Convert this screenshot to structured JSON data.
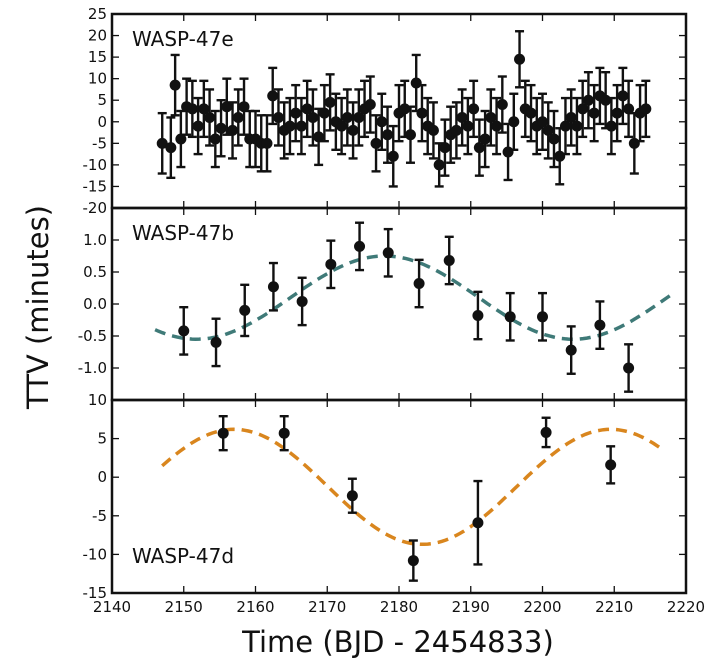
{
  "chart_data": {
    "type": "scatter",
    "xlabel": "Time (BJD - 2454833)",
    "ylabel": "TTV (minutes)",
    "xlim": [
      2140,
      2220
    ],
    "xticks": [
      "2140",
      "2150",
      "2160",
      "2170",
      "2180",
      "2190",
      "2200",
      "2210",
      "2220"
    ],
    "colors": {
      "points": "#111111",
      "model_b": "#3f7a78",
      "model_d": "#d9861e"
    },
    "panels": [
      {
        "name": "WASP-47e",
        "ylim": [
          -20,
          25
        ],
        "yticks": [
          "-20",
          "-15",
          "-10",
          "-5",
          "0",
          "5",
          "10",
          "15",
          "20",
          "25"
        ],
        "points": [
          {
            "x": 2147.0,
            "y": -5.0,
            "err": 7.0
          },
          {
            "x": 2148.2,
            "y": -6.0,
            "err": 7.0
          },
          {
            "x": 2148.8,
            "y": 8.5,
            "err": 7.0
          },
          {
            "x": 2149.6,
            "y": -4.0,
            "err": 6.5
          },
          {
            "x": 2150.4,
            "y": 3.5,
            "err": 6.5
          },
          {
            "x": 2151.2,
            "y": 3.0,
            "err": 6.5
          },
          {
            "x": 2152.0,
            "y": -1.0,
            "err": 6.5
          },
          {
            "x": 2152.8,
            "y": 3.0,
            "err": 6.5
          },
          {
            "x": 2153.6,
            "y": 1.0,
            "err": 6.5
          },
          {
            "x": 2154.4,
            "y": -4.0,
            "err": 6.5
          },
          {
            "x": 2155.2,
            "y": -1.5,
            "err": 6.5
          },
          {
            "x": 2156.0,
            "y": 3.5,
            "err": 6.5
          },
          {
            "x": 2156.8,
            "y": -2.0,
            "err": 6.5
          },
          {
            "x": 2157.6,
            "y": 1.0,
            "err": 6.5
          },
          {
            "x": 2158.4,
            "y": 3.5,
            "err": 6.5
          },
          {
            "x": 2159.2,
            "y": -4.0,
            "err": 6.5
          },
          {
            "x": 2160.0,
            "y": -4.0,
            "err": 6.5
          },
          {
            "x": 2160.8,
            "y": -5.0,
            "err": 6.5
          },
          {
            "x": 2161.6,
            "y": -5.0,
            "err": 6.5
          },
          {
            "x": 2162.4,
            "y": 6.0,
            "err": 6.5
          },
          {
            "x": 2163.2,
            "y": 1.0,
            "err": 6.5
          },
          {
            "x": 2164.0,
            "y": -2.0,
            "err": 6.5
          },
          {
            "x": 2164.8,
            "y": -1.0,
            "err": 6.5
          },
          {
            "x": 2165.6,
            "y": 2.0,
            "err": 6.5
          },
          {
            "x": 2166.4,
            "y": -1.0,
            "err": 6.5
          },
          {
            "x": 2167.2,
            "y": 3.0,
            "err": 6.5
          },
          {
            "x": 2168.0,
            "y": 1.0,
            "err": 6.5
          },
          {
            "x": 2168.8,
            "y": -3.5,
            "err": 6.5
          },
          {
            "x": 2169.6,
            "y": 2.0,
            "err": 6.5
          },
          {
            "x": 2170.4,
            "y": 4.5,
            "err": 6.5
          },
          {
            "x": 2171.2,
            "y": 0.0,
            "err": 6.5
          },
          {
            "x": 2172.0,
            "y": -1.0,
            "err": 6.5
          },
          {
            "x": 2172.8,
            "y": 1.0,
            "err": 6.5
          },
          {
            "x": 2173.6,
            "y": -2.0,
            "err": 6.5
          },
          {
            "x": 2174.4,
            "y": 1.0,
            "err": 6.5
          },
          {
            "x": 2175.2,
            "y": 3.0,
            "err": 6.5
          },
          {
            "x": 2176.0,
            "y": 4.0,
            "err": 6.5
          },
          {
            "x": 2176.8,
            "y": -5.0,
            "err": 6.5
          },
          {
            "x": 2177.6,
            "y": 0.0,
            "err": 6.5
          },
          {
            "x": 2178.4,
            "y": -3.0,
            "err": 6.5
          },
          {
            "x": 2179.2,
            "y": -8.0,
            "err": 7.0
          },
          {
            "x": 2180.0,
            "y": 2.0,
            "err": 6.5
          },
          {
            "x": 2180.8,
            "y": 3.0,
            "err": 6.5
          },
          {
            "x": 2181.6,
            "y": -3.0,
            "err": 6.5
          },
          {
            "x": 2182.4,
            "y": 9.0,
            "err": 6.5
          },
          {
            "x": 2183.2,
            "y": 2.0,
            "err": 6.5
          },
          {
            "x": 2184.0,
            "y": -1.0,
            "err": 6.5
          },
          {
            "x": 2184.8,
            "y": -2.0,
            "err": 6.5
          },
          {
            "x": 2185.6,
            "y": -10.0,
            "err": 5.0
          },
          {
            "x": 2186.4,
            "y": -6.0,
            "err": 6.5
          },
          {
            "x": 2187.2,
            "y": -3.0,
            "err": 6.5
          },
          {
            "x": 2188.0,
            "y": -2.0,
            "err": 6.5
          },
          {
            "x": 2188.8,
            "y": 1.0,
            "err": 6.5
          },
          {
            "x": 2189.6,
            "y": -1.0,
            "err": 6.5
          },
          {
            "x": 2190.4,
            "y": 3.0,
            "err": 6.5
          },
          {
            "x": 2191.2,
            "y": -6.0,
            "err": 6.5
          },
          {
            "x": 2192.0,
            "y": -4.0,
            "err": 6.5
          },
          {
            "x": 2192.8,
            "y": 1.0,
            "err": 6.5
          },
          {
            "x": 2193.6,
            "y": -1.0,
            "err": 6.5
          },
          {
            "x": 2194.4,
            "y": 4.0,
            "err": 6.5
          },
          {
            "x": 2195.2,
            "y": -7.0,
            "err": 6.5
          },
          {
            "x": 2196.0,
            "y": 0.0,
            "err": 6.5
          },
          {
            "x": 2196.8,
            "y": 14.5,
            "err": 6.5
          },
          {
            "x": 2197.6,
            "y": 3.0,
            "err": 6.5
          },
          {
            "x": 2198.4,
            "y": 2.0,
            "err": 6.5
          },
          {
            "x": 2199.2,
            "y": -1.0,
            "err": 6.5
          },
          {
            "x": 2200.0,
            "y": 0.0,
            "err": 6.5
          },
          {
            "x": 2200.8,
            "y": -2.0,
            "err": 6.5
          },
          {
            "x": 2201.6,
            "y": -4.0,
            "err": 6.5
          },
          {
            "x": 2202.4,
            "y": -8.0,
            "err": 6.5
          },
          {
            "x": 2203.2,
            "y": -1.0,
            "err": 6.5
          },
          {
            "x": 2204.0,
            "y": 1.0,
            "err": 6.5
          },
          {
            "x": 2204.8,
            "y": -1.0,
            "err": 6.5
          },
          {
            "x": 2205.6,
            "y": 3.0,
            "err": 6.5
          },
          {
            "x": 2206.4,
            "y": 5.0,
            "err": 6.5
          },
          {
            "x": 2207.2,
            "y": 2.0,
            "err": 6.5
          },
          {
            "x": 2208.0,
            "y": 6.0,
            "err": 6.5
          },
          {
            "x": 2208.8,
            "y": 5.0,
            "err": 6.5
          },
          {
            "x": 2209.6,
            "y": -1.0,
            "err": 6.5
          },
          {
            "x": 2210.4,
            "y": 2.0,
            "err": 6.5
          },
          {
            "x": 2211.2,
            "y": 6.0,
            "err": 6.5
          },
          {
            "x": 2212.0,
            "y": 3.0,
            "err": 6.5
          },
          {
            "x": 2212.8,
            "y": -5.0,
            "err": 7.0
          },
          {
            "x": 2213.6,
            "y": 2.0,
            "err": 6.5
          },
          {
            "x": 2214.4,
            "y": 3.0,
            "err": 6.5
          }
        ]
      },
      {
        "name": "WASP-47b",
        "ylim": [
          -1.5,
          1.5
        ],
        "yticks": [
          "-1.0",
          "-0.5",
          "0.0",
          "0.5",
          "1.0"
        ],
        "model": {
          "x": [
            2146,
            2218
          ],
          "offset": 0.1,
          "amplitude": 0.65,
          "period": 52.5,
          "phase_ref": 2178.0,
          "color": "#3f7a78"
        },
        "points": [
          {
            "x": 2150.0,
            "y": -0.42,
            "err": 0.37
          },
          {
            "x": 2154.5,
            "y": -0.6,
            "err": 0.37
          },
          {
            "x": 2158.5,
            "y": -0.1,
            "err": 0.4
          },
          {
            "x": 2162.5,
            "y": 0.27,
            "err": 0.37
          },
          {
            "x": 2166.5,
            "y": 0.04,
            "err": 0.37
          },
          {
            "x": 2170.5,
            "y": 0.62,
            "err": 0.37
          },
          {
            "x": 2174.5,
            "y": 0.9,
            "err": 0.37
          },
          {
            "x": 2178.5,
            "y": 0.8,
            "err": 0.37
          },
          {
            "x": 2182.8,
            "y": 0.32,
            "err": 0.37
          },
          {
            "x": 2187.0,
            "y": 0.68,
            "err": 0.37
          },
          {
            "x": 2191.0,
            "y": -0.18,
            "err": 0.37
          },
          {
            "x": 2195.5,
            "y": -0.2,
            "err": 0.37
          },
          {
            "x": 2200.0,
            "y": -0.2,
            "err": 0.37
          },
          {
            "x": 2204.0,
            "y": -0.72,
            "err": 0.37
          },
          {
            "x": 2208.0,
            "y": -0.33,
            "err": 0.37
          },
          {
            "x": 2212.0,
            "y": -1.0,
            "err": 0.37
          }
        ]
      },
      {
        "name": "WASP-47d",
        "ylim": [
          -15,
          10
        ],
        "yticks": [
          "-15",
          "-10",
          "-5",
          "0",
          "5",
          "10"
        ],
        "model": {
          "x": [
            2147,
            2217
          ],
          "offset": -1.25,
          "amplitude": 7.45,
          "period": 52.5,
          "phase_ref": 2157.0,
          "color": "#d9861e"
        },
        "points": [
          {
            "x": 2155.5,
            "y": 5.7,
            "err": 2.2
          },
          {
            "x": 2164.0,
            "y": 5.7,
            "err": 2.2
          },
          {
            "x": 2173.5,
            "y": -2.4,
            "err": 2.2
          },
          {
            "x": 2182.0,
            "y": -10.8,
            "err": 2.6
          },
          {
            "x": 2191.0,
            "y": -5.9,
            "err": 5.4
          },
          {
            "x": 2200.5,
            "y": 5.8,
            "err": 1.9
          },
          {
            "x": 2209.5,
            "y": 1.6,
            "err": 2.4
          }
        ]
      }
    ]
  }
}
